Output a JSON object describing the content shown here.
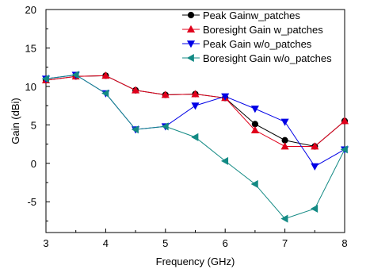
{
  "chart_data": {
    "type": "line",
    "title": "",
    "xlabel": "Frequency (GHz)",
    "ylabel": "Gain (dBi)",
    "xlim": [
      3,
      8
    ],
    "ylim": [
      -9,
      20
    ],
    "x_ticks": [
      3,
      3.5,
      4,
      4.5,
      5,
      5.5,
      6,
      6.5,
      7,
      7.5,
      8
    ],
    "x_tick_labels": [
      "3",
      "4",
      "5",
      "6",
      "7",
      "8"
    ],
    "x_tick_label_values": [
      3,
      4,
      5,
      6,
      7,
      8
    ],
    "y_ticks": [
      -5,
      0,
      5,
      10,
      15,
      20
    ],
    "y_tick_labels": [
      "-5",
      "0",
      "5",
      "10",
      "15",
      "20"
    ],
    "grid": false,
    "legend_position": "top-right",
    "x": [
      3,
      3.5,
      4,
      4.5,
      5,
      5.5,
      6,
      6.5,
      7,
      7.5,
      8
    ],
    "series": [
      {
        "name": "Peak Gainw_patches",
        "color": "#000000",
        "marker": "circle",
        "values": [
          10.8,
          11.3,
          11.4,
          9.5,
          8.9,
          9.0,
          8.5,
          5.1,
          3.0,
          2.2,
          5.5
        ]
      },
      {
        "name": "Boresight Gain w_patches",
        "color": "#e0001b",
        "marker": "triangle-up",
        "values": [
          10.8,
          11.3,
          11.4,
          9.5,
          8.9,
          9.0,
          8.5,
          4.3,
          2.2,
          2.2,
          5.5
        ]
      },
      {
        "name": "Peak Gain w/o_patches",
        "color": "#0000e6",
        "marker": "triangle-down",
        "values": [
          11.0,
          11.5,
          9.1,
          4.4,
          4.8,
          7.5,
          8.7,
          7.1,
          5.4,
          -0.4,
          1.8
        ]
      },
      {
        "name": "Boresight Gain w/o_patches",
        "color": "#138a84",
        "marker": "triangle-left",
        "values": [
          11.0,
          11.5,
          9.1,
          4.4,
          4.8,
          3.4,
          0.3,
          -2.7,
          -7.2,
          -5.9,
          1.8
        ]
      }
    ]
  }
}
